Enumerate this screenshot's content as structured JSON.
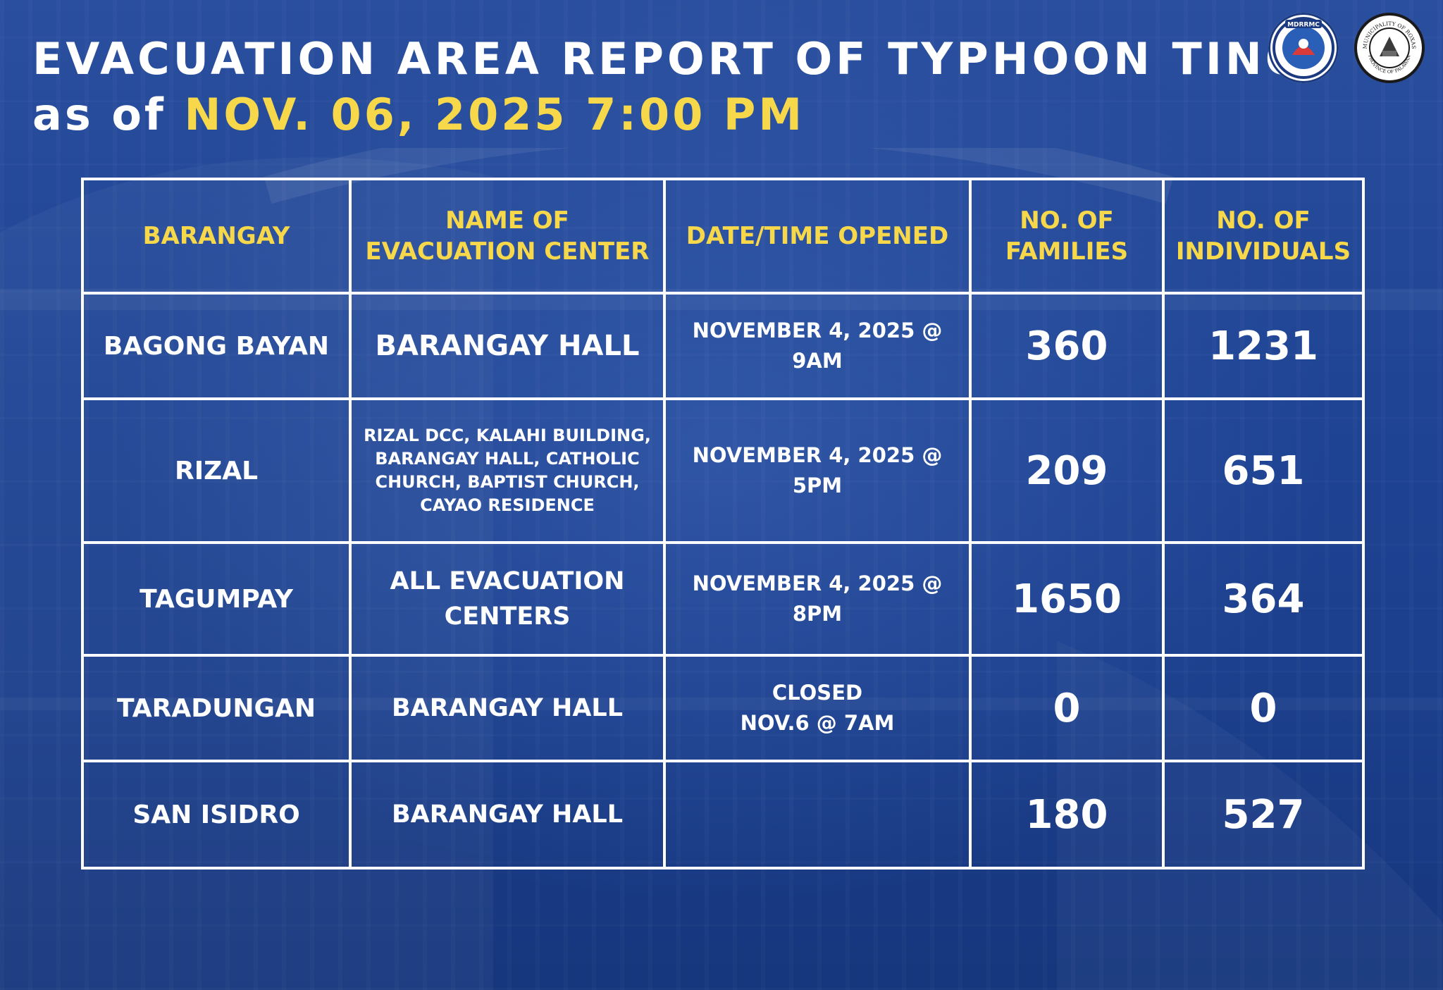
{
  "header": {
    "title": "EVACUATION AREA REPORT OF TYPHOON TINO",
    "subtitle_prefix": "as of",
    "subtitle_date": "NOV. 06, 2025 7:00 PM"
  },
  "logos": {
    "mdrrmc_text": "MDRRMC",
    "municipality_text": "MUNICIPALITY OF ROXAS",
    "province_text": "PROVINCE OF PALAWAN"
  },
  "table": {
    "headers": {
      "barangay": "BARANGAY",
      "center_line1": "NAME OF",
      "center_line2": "EVACUATION CENTER",
      "date": "DATE/TIME OPENED",
      "families_line1": "NO. OF",
      "families_line2": "FAMILIES",
      "individuals_line1": "NO. OF",
      "individuals_line2": "INDIVIDUALS"
    },
    "rows": [
      {
        "barangay": "BAGONG BAYAN",
        "center_line1": "BARANGAY HALL",
        "center_line2": "",
        "center_line3": "",
        "center_line4": "",
        "date_line1": "NOVEMBER 4, 2025 @",
        "date_line2": "9AM",
        "families": "360",
        "individuals": "1231"
      },
      {
        "barangay": "RIZAL",
        "center_line1": "RIZAL DCC, KALAHI BUILDING,",
        "center_line2": "BARANGAY HALL, CATHOLIC",
        "center_line3": "CHURCH, BAPTIST CHURCH,",
        "center_line4": "CAYAO RESIDENCE",
        "date_line1": "NOVEMBER 4, 2025 @",
        "date_line2": "5PM",
        "families": "209",
        "individuals": "651"
      },
      {
        "barangay": "TAGUMPAY",
        "center_line1": "ALL EVACUATION",
        "center_line2": "CENTERS",
        "center_line3": "",
        "center_line4": "",
        "date_line1": "NOVEMBER 4, 2025 @",
        "date_line2": "8PM",
        "families": "1650",
        "individuals": "364"
      },
      {
        "barangay": "TARADUNGAN",
        "center_line1": "BARANGAY HALL",
        "center_line2": "",
        "center_line3": "",
        "center_line4": "",
        "date_line1": "CLOSED",
        "date_line2": "NOV.6 @ 7AM",
        "families": "0",
        "individuals": "0"
      },
      {
        "barangay": "SAN ISIDRO",
        "center_line1": "BARANGAY HALL",
        "center_line2": "",
        "center_line3": "",
        "center_line4": "",
        "date_line1": "",
        "date_line2": "",
        "families": "180",
        "individuals": "527"
      }
    ]
  },
  "colors": {
    "background": "#1f4494",
    "accent_yellow": "#f7d84a",
    "text_white": "#ffffff",
    "grid_line": "#ffffff"
  }
}
